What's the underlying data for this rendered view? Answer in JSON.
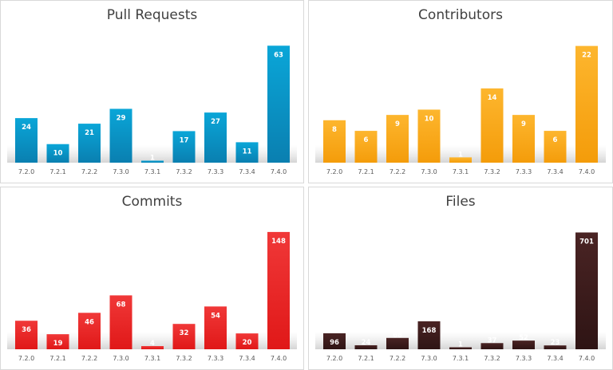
{
  "chart_data": [
    {
      "type": "bar",
      "title": "Pull Requests",
      "categories": [
        "7.2.0",
        "7.2.1",
        "7.2.2",
        "7.3.0",
        "7.3.1",
        "7.3.2",
        "7.3.3",
        "7.3.4",
        "7.4.0"
      ],
      "values": [
        24,
        10,
        21,
        29,
        1,
        17,
        27,
        11,
        63
      ],
      "color": "#0aa6d8",
      "color_dark": "#0a7fb0",
      "ylim": [
        0,
        70
      ],
      "grid": false,
      "data_labels": true
    },
    {
      "type": "bar",
      "title": "Contributors",
      "categories": [
        "7.2.0",
        "7.2.1",
        "7.2.2",
        "7.3.0",
        "7.3.1",
        "7.3.2",
        "7.3.3",
        "7.3.4",
        "7.4.0"
      ],
      "values": [
        8,
        6,
        9,
        10,
        1,
        14,
        9,
        6,
        22
      ],
      "color": "#fdb62e",
      "color_dark": "#f49c0a",
      "ylim": [
        0,
        24.5
      ],
      "grid": false,
      "data_labels": true
    },
    {
      "type": "bar",
      "title": "Commits",
      "categories": [
        "7.2.0",
        "7.2.1",
        "7.2.2",
        "7.3.0",
        "7.3.1",
        "7.3.2",
        "7.3.3",
        "7.3.4",
        "7.4.0"
      ],
      "values": [
        36,
        19,
        46,
        68,
        4,
        32,
        54,
        20,
        148
      ],
      "color": "#f03838",
      "color_dark": "#e01818",
      "ylim": [
        0,
        164
      ],
      "grid": false,
      "data_labels": true
    },
    {
      "type": "bar",
      "title": "Files",
      "categories": [
        "7.2.0",
        "7.2.1",
        "7.2.2",
        "7.3.0",
        "7.3.1",
        "7.3.2",
        "7.3.3",
        "7.3.4",
        "7.4.0"
      ],
      "values": [
        96,
        24,
        68,
        168,
        1,
        37,
        52,
        23,
        701
      ],
      "color": "#4a2424",
      "color_dark": "#2e1414",
      "ylim": [
        0,
        780
      ],
      "grid": false,
      "data_labels": true
    }
  ]
}
